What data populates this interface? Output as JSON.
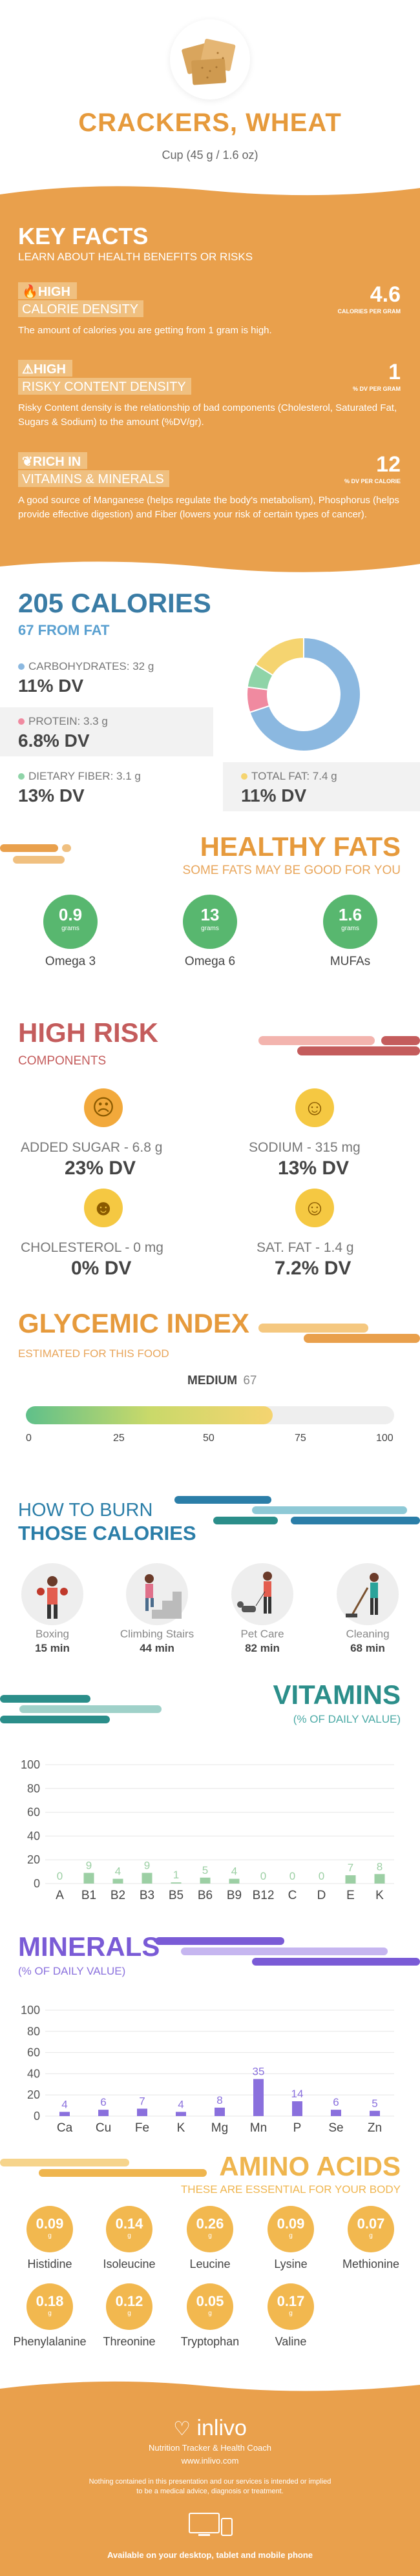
{
  "header": {
    "food_title": "CRACKERS, WHEAT",
    "serving": "Cup (45 g / 1.6 oz)"
  },
  "key_facts": {
    "title": "KEY FACTS",
    "subtitle": "LEARN ABOUT HEALTH BENEFITS OR RISKS",
    "items": [
      {
        "level": "HIGH",
        "label": "CALORIE DENSITY",
        "value": "4.6",
        "unit": "CALORIES PER GRAM",
        "icon": "fire-icon",
        "desc": "The amount of calories you are getting from 1 gram is high."
      },
      {
        "level": "HIGH",
        "label": "RISKY CONTENT DENSITY",
        "value": "1",
        "unit": "% DV PER GRAM",
        "icon": "warning-icon",
        "desc": "Risky Content density is the relationship of bad components (Cholesterol, Saturated Fat, Sugars & Sodium) to the amount (%DV/gr)."
      },
      {
        "level": "RICH  IN",
        "label": "VITAMINS & MINERALS",
        "value": "12",
        "unit": "% DV PER CALORIE",
        "icon": "leaf-icon",
        "desc": "A good source of Manganese (helps regulate the body's metabolism), Phosphorus (helps provide effective digestion) and Fiber (lowers your risk of certain types of cancer)."
      }
    ]
  },
  "calories": {
    "title": "205 CALORIES",
    "subtitle": "67 FROM FAT",
    "nutrients": [
      {
        "label": "CARBOHYDRATES: 32 g",
        "dv": "11% DV",
        "color": "#8bb8e0"
      },
      {
        "label": "PROTEIN: 3.3 g",
        "dv": "6.8% DV",
        "color": "#f08aa0"
      },
      {
        "label": "DIETARY FIBER: 3.1 g",
        "dv": "13% DV",
        "color": "#8fd4a8"
      },
      {
        "label": "TOTAL FAT: 7.4 g",
        "dv": "11% DV",
        "color": "#f5d470"
      }
    ]
  },
  "chart_data": [
    {
      "type": "pie",
      "categories": [
        "Carbohydrates",
        "Protein",
        "Dietary Fiber",
        "Total Fat"
      ],
      "values": [
        32,
        3.3,
        3.1,
        7.4
      ],
      "colors": [
        "#8bb8e0",
        "#f08aa0",
        "#8fd4a8",
        "#f5d470"
      ]
    },
    {
      "type": "bar",
      "categories": [
        "A",
        "B1",
        "B2",
        "B3",
        "B5",
        "B6",
        "B9",
        "B12",
        "C",
        "D",
        "E",
        "K"
      ],
      "values": [
        0,
        9,
        4,
        9,
        1,
        5,
        4,
        0,
        0,
        0,
        7,
        8
      ],
      "ylim": [
        0,
        100
      ],
      "yticks": [
        0,
        20,
        40,
        60,
        80,
        100
      ]
    },
    {
      "type": "bar",
      "categories": [
        "Ca",
        "Cu",
        "Fe",
        "K",
        "Mg",
        "Mn",
        "P",
        "Se",
        "Zn"
      ],
      "values": [
        4,
        6,
        7,
        4,
        8,
        35,
        14,
        6,
        5
      ],
      "ylim": [
        0,
        100
      ],
      "yticks": [
        0,
        20,
        40,
        60,
        80,
        100
      ]
    }
  ],
  "fats": {
    "title": "HEALTHY FATS",
    "subtitle": "SOME FATS MAY BE GOOD FOR YOU",
    "items": [
      {
        "value": "0.9",
        "unit": "grams",
        "name": "Omega 3"
      },
      {
        "value": "13",
        "unit": "grams",
        "name": "Omega 6"
      },
      {
        "value": "1.6",
        "unit": "grams",
        "name": "MUFAs"
      }
    ]
  },
  "risk": {
    "title": "HIGH RISK",
    "subtitle": "COMPONENTS",
    "items": [
      {
        "label": "ADDED SUGAR - 6.8 g",
        "dv": "23% DV",
        "face": "☹"
      },
      {
        "label": "SODIUM - 315 mg",
        "dv": "13% DV",
        "face": "☺"
      },
      {
        "label": "CHOLESTEROL - 0 mg",
        "dv": "0% DV",
        "face": "☻"
      },
      {
        "label": "SAT. FAT - 1.4 g",
        "dv": "7.2% DV",
        "face": "☺"
      }
    ]
  },
  "glycemic": {
    "title": "GLYCEMIC INDEX",
    "subtitle": "ESTIMATED FOR THIS FOOD",
    "level": "MEDIUM",
    "value": "67",
    "fraction": 0.67,
    "ticks": [
      "0",
      "25",
      "50",
      "75",
      "100"
    ]
  },
  "burn": {
    "title_line1": "HOW TO BURN",
    "title_line2": "THOSE CALORIES",
    "activities": [
      {
        "name": "Boxing",
        "minutes": "15 min"
      },
      {
        "name": "Climbing Stairs",
        "minutes": "44 min"
      },
      {
        "name": "Pet Care",
        "minutes": "82 min"
      },
      {
        "name": "Cleaning",
        "minutes": "68 min"
      }
    ]
  },
  "vitamins": {
    "title": "VITAMINS",
    "subtitle": "(% OF DAILY VALUE)"
  },
  "minerals": {
    "title": "MINERALS",
    "subtitle": "(% OF DAILY VALUE)"
  },
  "amino": {
    "title": "AMINO ACIDS",
    "subtitle": "THESE ARE ESSENTIAL FOR YOUR BODY",
    "items": [
      {
        "value": "0.09",
        "unit": "g",
        "name": "Histidine"
      },
      {
        "value": "0.14",
        "unit": "g",
        "name": "Isoleucine"
      },
      {
        "value": "0.26",
        "unit": "g",
        "name": "Leucine"
      },
      {
        "value": "0.09",
        "unit": "g",
        "name": "Lysine"
      },
      {
        "value": "0.07",
        "unit": "g",
        "name": "Methionine"
      },
      {
        "value": "0.18",
        "unit": "g",
        "name": "Phenylalanine"
      },
      {
        "value": "0.12",
        "unit": "g",
        "name": "Threonine"
      },
      {
        "value": "0.05",
        "unit": "g",
        "name": "Tryptophan"
      },
      {
        "value": "0.17",
        "unit": "g",
        "name": "Valine"
      }
    ]
  },
  "footer": {
    "brand": "inlivo",
    "tagline": "Nutrition Tracker & Health Coach",
    "url": "www.inlivo.com",
    "disclaimer_1": "Nothing contained in this presentation and our services is intended or implied",
    "disclaimer_2": "to be a medical advice, diagnosis or treatment.",
    "available": "Available on your desktop, tablet and mobile phone"
  },
  "colors": {
    "orange": "#e9a04c",
    "blue": "#3a7ca5",
    "green": "#58b76f",
    "red": "#c45c5c",
    "teal": "#2b8e8a",
    "purple": "#7a5bd6",
    "amber": "#f2b84f"
  }
}
